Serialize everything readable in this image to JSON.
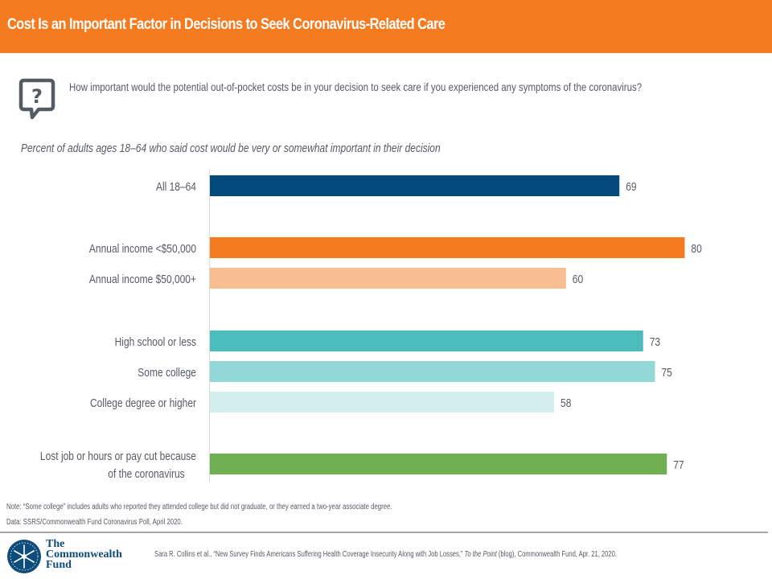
{
  "header": {
    "title": "Cost Is an Important Factor in Decisions to Seek Coronavirus-Related Care"
  },
  "question": {
    "icon": "question-speech-bubble-icon",
    "text": "How important would the potential out-of-pocket costs be in your decision to seek care if you experienced any symptoms of the coronavirus?"
  },
  "subtitle": "Percent of adults ages 18–64 who said cost would be very or somewhat important in their decision",
  "chart_data": {
    "type": "bar",
    "orientation": "horizontal",
    "title": "Percent of adults ages 18–64 who said cost would be very or somewhat important in their decision",
    "xlabel": "",
    "ylabel": "",
    "xlim": [
      0,
      100
    ],
    "grid": false,
    "legend": "none",
    "categories": [
      "All 18–64",
      "Annual income <$50,000",
      "Annual income $50,000+",
      "High school or less",
      "Some college",
      "College degree or higher",
      "Lost job or hours or pay cut because of the coronavirus"
    ],
    "label_lines": [
      [
        "All 18–64"
      ],
      [
        "Annual income <$50,000"
      ],
      [
        "Annual income $50,000+"
      ],
      [
        "High school or less"
      ],
      [
        "Some college"
      ],
      [
        "College degree or higher"
      ],
      [
        "Lost job or hours or pay cut because",
        "of the coronavirus"
      ]
    ],
    "values": [
      69,
      80,
      60,
      73,
      75,
      58,
      77
    ],
    "data_labels": [
      "69",
      "80",
      "60",
      "73",
      "75",
      "58",
      "77"
    ],
    "colors": [
      "#054a7d",
      "#f47b20",
      "#f8bd91",
      "#4bbdbd",
      "#93d8d8",
      "#d3eeee",
      "#70b052"
    ],
    "groups": [
      [
        0
      ],
      [
        1,
        2
      ],
      [
        3,
        4,
        5
      ],
      [
        6
      ]
    ]
  },
  "notes": {
    "note": "Note: “Some college” includes adults who reported they attended college but did not graduate, or they earned a two-year associate degree.",
    "data": "Data: SSRS/Commonwealth Fund Coronavirus Poll, April 2020."
  },
  "footer": {
    "logo_icon": "commonwealth-fund-snowflake-logo-icon",
    "logo_lines": [
      "The",
      "Commonwealth",
      "Fund"
    ],
    "citation_pre": "Sara R. Collins et al., “New Survey Finds Americans Suffering Health Coverage Insecurity Along with Job Losses,” ",
    "citation_italic": "To the Point",
    "citation_post": " (blog), Commonwealth Fund, Apr. 21, 2020."
  }
}
